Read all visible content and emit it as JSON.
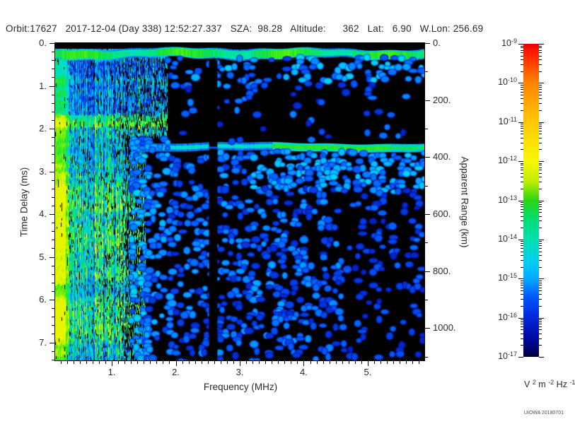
{
  "header": {
    "text": "Orbit:17627   2017-12-04 (Day 338) 12:52:27.337   SZA:  98.28   Altitude:      362   Lat:   6.90   W.Lon: 256.69",
    "orbit": "17627",
    "date": "2017-12-04",
    "day_of_year": "338",
    "time": "12:52:27.337",
    "sza": "98.28",
    "altitude": "362",
    "lat": "6.90",
    "w_lon": "256.69"
  },
  "watermark": "UIOWA 20180701",
  "chart_data": {
    "type": "heatmap",
    "subtype": "radar-sounder-ionogram-spectrogram",
    "title": "",
    "x_axis": {
      "label": "Frequency (MHz)",
      "min": 0.115,
      "max": 5.885,
      "major_ticks": [
        1,
        2,
        3,
        4,
        5
      ],
      "tick_labels": [
        "1.",
        "2.",
        "3.",
        "4.",
        "5."
      ],
      "minor_step": 0.1
    },
    "y_axis": {
      "label": "Time Delay (ms)",
      "min": 0,
      "max": 7.42,
      "direction": "down",
      "major_ticks": [
        0,
        1,
        2,
        3,
        4,
        5,
        6,
        7
      ],
      "tick_labels": [
        "0.",
        "1.",
        "2.",
        "3.",
        "4.",
        "5.",
        "6.",
        "7."
      ],
      "minor_step": 0.2
    },
    "y2_axis": {
      "label": "Apparent Range (km)",
      "min": 0,
      "max": 1113,
      "major_ticks": [
        0,
        200,
        400,
        600,
        800,
        1000
      ],
      "tick_labels": [
        "0.",
        "200.",
        "400.",
        "600.",
        "800.",
        "1000."
      ],
      "minor_step": 100
    },
    "colorbar": {
      "scale": "log",
      "exponents": [
        -9,
        -10,
        -11,
        -12,
        -13,
        -14,
        -15,
        -16,
        -17
      ],
      "unit_tokens": [
        [
          "V",
          "2"
        ],
        [
          "m",
          "-2"
        ],
        [
          "Hz",
          "-1"
        ]
      ],
      "gradient_stops": [
        [
          0,
          "#e00000"
        ],
        [
          0.02,
          "#ff1400"
        ],
        [
          0.125,
          "#ff8400"
        ],
        [
          0.25,
          "#ffc800"
        ],
        [
          0.375,
          "#f8f800"
        ],
        [
          0.44,
          "#c0ee00"
        ],
        [
          0.5,
          "#28d614"
        ],
        [
          0.565,
          "#00dc78"
        ],
        [
          0.625,
          "#00e0b0"
        ],
        [
          0.7,
          "#00ccf4"
        ],
        [
          0.75,
          "#00aaff"
        ],
        [
          0.81,
          "#0055ff"
        ],
        [
          0.875,
          "#0028d8"
        ],
        [
          0.94,
          "#0008a0"
        ],
        [
          0.985,
          "#000060"
        ],
        [
          1,
          "#000030"
        ]
      ]
    },
    "palette_stops": [
      [
        0,
        "#000000"
      ],
      [
        0.1,
        "#000074"
      ],
      [
        0.2,
        "#0022c4"
      ],
      [
        0.3,
        "#0055f0"
      ],
      [
        0.4,
        "#00a2ff"
      ],
      [
        0.5,
        "#00d8e6"
      ],
      [
        0.58,
        "#00e69e"
      ],
      [
        0.68,
        "#12e03e"
      ],
      [
        0.78,
        "#46ee10"
      ],
      [
        0.88,
        "#b4f000"
      ],
      [
        1,
        "#f8f800"
      ]
    ],
    "features": {
      "seed": 20180701,
      "background": "#000000",
      "top_band": {
        "t_top": 0.13,
        "t_bottom": 0.36,
        "intensity": 0.66
      },
      "stripe_region": {
        "f_min": 0.115,
        "f_max_upper": 1.87,
        "f_max_lower": 1.52,
        "t_split": 2.15,
        "t_start": 0.13,
        "bright_row_t": [
          1.62,
          1.95
        ],
        "left_bright_f_max": 0.24
      },
      "ground_band": {
        "t": 2.42,
        "thickness_ms": 0.1,
        "f_start": 1.3,
        "green_f_start": 3.5,
        "intensity_cyan": 0.52,
        "intensity_green": 0.72
      },
      "gap_band_f": [
        2.52,
        2.65
      ],
      "speckle_zones": [
        {
          "f0": 1.87,
          "f1": 3.9,
          "t0": 0.35,
          "t1": 0.95,
          "density": 0.2,
          "imin": 0.26,
          "imax": 0.5
        },
        {
          "f0": 3.9,
          "f1": 5.85,
          "t0": 0.33,
          "t1": 0.9,
          "density": 0.38,
          "imin": 0.3,
          "imax": 0.52
        },
        {
          "f0": 1.87,
          "f1": 5.85,
          "t0": 0.95,
          "t1": 2.3,
          "density": 0.09,
          "imin": 0.2,
          "imax": 0.38
        },
        {
          "f0": 1.3,
          "f1": 1.55,
          "t0": 2.2,
          "t1": 7.4,
          "density": 0.42,
          "imin": 0.28,
          "imax": 0.52
        },
        {
          "f0": 1.55,
          "f1": 1.9,
          "t0": 2.2,
          "t1": 7.4,
          "density": 0.3,
          "imin": 0.24,
          "imax": 0.46
        },
        {
          "f0": 1.9,
          "f1": 3.2,
          "t0": 2.55,
          "t1": 3.4,
          "density": 0.27,
          "imin": 0.24,
          "imax": 0.44
        },
        {
          "f0": 3.2,
          "f1": 5.85,
          "t0": 2.52,
          "t1": 3.45,
          "density": 0.48,
          "imin": 0.3,
          "imax": 0.5
        },
        {
          "f0": 1.9,
          "f1": 4.6,
          "t0": 3.4,
          "t1": 6.3,
          "density": 0.3,
          "imin": 0.22,
          "imax": 0.42
        },
        {
          "f0": 1.9,
          "f1": 4.6,
          "t0": 6.3,
          "t1": 7.4,
          "density": 0.26,
          "imin": 0.22,
          "imax": 0.4
        },
        {
          "f0": 4.6,
          "f1": 5.85,
          "t0": 3.45,
          "t1": 7.4,
          "density": 0.15,
          "imin": 0.2,
          "imax": 0.34
        }
      ]
    }
  }
}
